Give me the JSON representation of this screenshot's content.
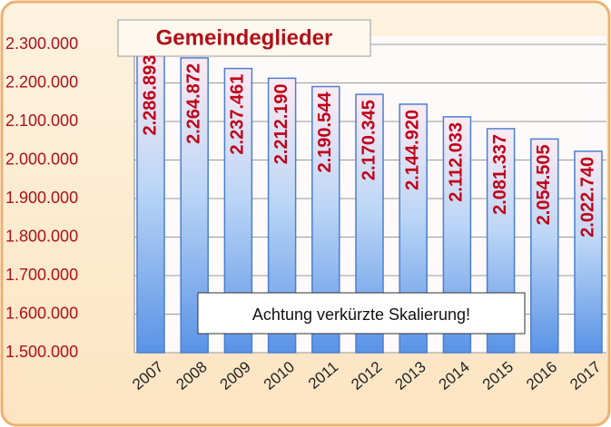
{
  "chart_data": {
    "type": "bar",
    "title": "Gemeindeglieder",
    "annotation": "Achtung verkürzte Skalierung!",
    "categories": [
      "2007",
      "2008",
      "2009",
      "2010",
      "2011",
      "2012",
      "2013",
      "2014",
      "2015",
      "2016",
      "2017"
    ],
    "values": [
      2286893,
      2264872,
      2237461,
      2212190,
      2190544,
      2170345,
      2144920,
      2112033,
      2081337,
      2054505,
      2022740
    ],
    "value_labels": [
      "2.286.893",
      "2.264.872",
      "2.237.461",
      "2.212.190",
      "2.190.544",
      "2.170.345",
      "2.144.920",
      "2.112.033",
      "2.081.337",
      "2.054.505",
      "2.022.740"
    ],
    "color": "#5a93e6",
    "ylim": [
      1500000,
      2300000
    ],
    "yticks": [
      {
        "value": 1500000,
        "label": "1.500.000"
      },
      {
        "value": 1600000,
        "label": "1.600.000"
      },
      {
        "value": 1700000,
        "label": "1.700.000"
      },
      {
        "value": 1800000,
        "label": "1.800.000"
      },
      {
        "value": 1900000,
        "label": "1.900.000"
      },
      {
        "value": 2000000,
        "label": "2.000.000"
      },
      {
        "value": 2100000,
        "label": "2.100.000"
      },
      {
        "value": 2200000,
        "label": "2.200.000"
      },
      {
        "value": 2300000,
        "label": "2.300.000"
      }
    ],
    "grid": true
  }
}
